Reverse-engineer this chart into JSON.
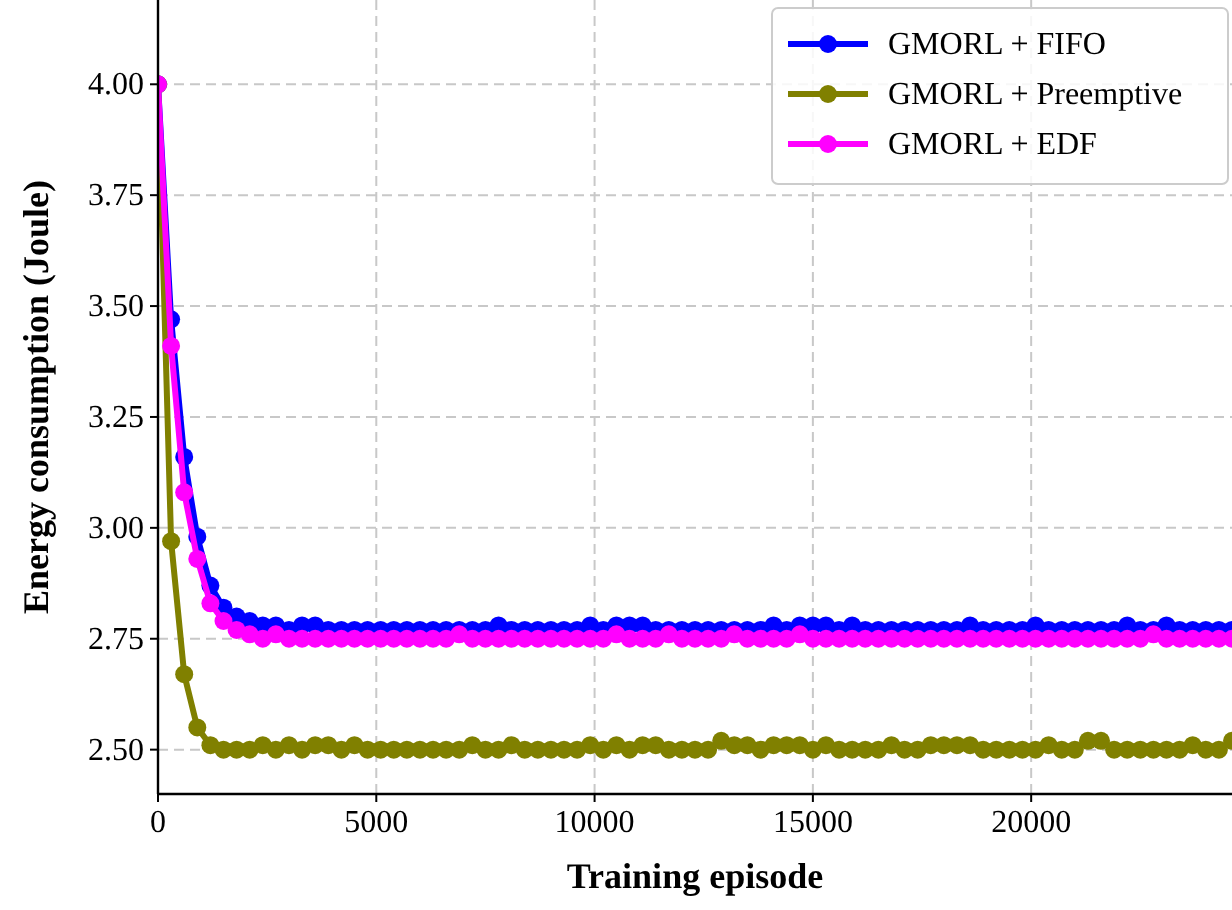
{
  "chart_data": {
    "type": "line",
    "xlabel": "Training episode",
    "ylabel": "Energy consumption (Joule)",
    "x": [
      0,
      300,
      600,
      900,
      1200,
      1500,
      1800,
      2100,
      2400,
      2700,
      3000,
      3300,
      3600,
      3900,
      4200,
      4500,
      4800,
      5100,
      5400,
      5700,
      6000,
      6300,
      6600,
      6900,
      7200,
      7500,
      7800,
      8100,
      8400,
      8700,
      9000,
      9300,
      9600,
      9900,
      10200,
      10500,
      10800,
      11100,
      11400,
      11700,
      12000,
      12300,
      12600,
      12900,
      13200,
      13500,
      13800,
      14100,
      14400,
      14700,
      15000,
      15300,
      15600,
      15900,
      16200,
      16500,
      16800,
      17100,
      17400,
      17700,
      18000,
      18300,
      18600,
      18900,
      19200,
      19500,
      19800,
      20100,
      20400,
      20700,
      21000,
      21300,
      21600,
      21900,
      22200,
      22500,
      22800,
      23100,
      23400,
      23700,
      24000,
      24300,
      24600
    ],
    "series": [
      {
        "name": "GMORL + FIFO",
        "color": "#0000ff",
        "values": [
          4.0,
          3.47,
          3.16,
          2.98,
          2.87,
          2.82,
          2.8,
          2.79,
          2.78,
          2.78,
          2.77,
          2.78,
          2.78,
          2.77,
          2.77,
          2.77,
          2.77,
          2.77,
          2.77,
          2.77,
          2.77,
          2.77,
          2.77,
          2.77,
          2.77,
          2.77,
          2.78,
          2.77,
          2.77,
          2.77,
          2.77,
          2.77,
          2.77,
          2.78,
          2.77,
          2.78,
          2.78,
          2.78,
          2.77,
          2.77,
          2.77,
          2.77,
          2.77,
          2.77,
          2.77,
          2.77,
          2.77,
          2.78,
          2.77,
          2.78,
          2.78,
          2.78,
          2.77,
          2.78,
          2.77,
          2.77,
          2.77,
          2.77,
          2.77,
          2.77,
          2.77,
          2.77,
          2.78,
          2.77,
          2.77,
          2.77,
          2.77,
          2.78,
          2.77,
          2.77,
          2.77,
          2.77,
          2.77,
          2.77,
          2.78,
          2.77,
          2.77,
          2.78,
          2.77,
          2.77,
          2.77,
          2.77,
          2.77
        ]
      },
      {
        "name": "GMORL + Preemptive",
        "color": "#808000",
        "values": [
          4.0,
          2.97,
          2.67,
          2.55,
          2.51,
          2.5,
          2.5,
          2.5,
          2.51,
          2.5,
          2.51,
          2.5,
          2.51,
          2.51,
          2.5,
          2.51,
          2.5,
          2.5,
          2.5,
          2.5,
          2.5,
          2.5,
          2.5,
          2.5,
          2.51,
          2.5,
          2.5,
          2.51,
          2.5,
          2.5,
          2.5,
          2.5,
          2.5,
          2.51,
          2.5,
          2.51,
          2.5,
          2.51,
          2.51,
          2.5,
          2.5,
          2.5,
          2.5,
          2.52,
          2.51,
          2.51,
          2.5,
          2.51,
          2.51,
          2.51,
          2.5,
          2.51,
          2.5,
          2.5,
          2.5,
          2.5,
          2.51,
          2.5,
          2.5,
          2.51,
          2.51,
          2.51,
          2.51,
          2.5,
          2.5,
          2.5,
          2.5,
          2.5,
          2.51,
          2.5,
          2.5,
          2.52,
          2.52,
          2.5,
          2.5,
          2.5,
          2.5,
          2.5,
          2.5,
          2.51,
          2.5,
          2.5,
          2.52
        ]
      },
      {
        "name": "GMORL + EDF",
        "color": "#ff00ff",
        "values": [
          4.0,
          3.41,
          3.08,
          2.93,
          2.83,
          2.79,
          2.77,
          2.76,
          2.75,
          2.76,
          2.75,
          2.75,
          2.75,
          2.75,
          2.75,
          2.75,
          2.75,
          2.75,
          2.75,
          2.75,
          2.75,
          2.75,
          2.75,
          2.76,
          2.75,
          2.75,
          2.75,
          2.75,
          2.75,
          2.75,
          2.75,
          2.75,
          2.75,
          2.75,
          2.75,
          2.76,
          2.75,
          2.75,
          2.75,
          2.76,
          2.75,
          2.75,
          2.75,
          2.75,
          2.76,
          2.75,
          2.75,
          2.75,
          2.75,
          2.76,
          2.75,
          2.75,
          2.75,
          2.75,
          2.75,
          2.75,
          2.75,
          2.75,
          2.75,
          2.75,
          2.75,
          2.75,
          2.75,
          2.75,
          2.75,
          2.75,
          2.75,
          2.75,
          2.75,
          2.75,
          2.75,
          2.75,
          2.75,
          2.75,
          2.75,
          2.75,
          2.76,
          2.75,
          2.75,
          2.75,
          2.75,
          2.75,
          2.75
        ]
      }
    ],
    "xlim": [
      0,
      24600
    ],
    "xticks": [
      0,
      5000,
      10000,
      15000,
      20000
    ],
    "ylim": [
      2.4,
      4.19
    ],
    "yticks": [
      {
        "value": 2.5,
        "label": "2.50"
      },
      {
        "value": 2.75,
        "label": "2.75"
      },
      {
        "value": 3,
        "label": "3.00"
      },
      {
        "value": 3.25,
        "label": "3.25"
      },
      {
        "value": 3.5,
        "label": "3.50"
      },
      {
        "value": 3.75,
        "label": "3.75"
      },
      {
        "value": 4,
        "label": "4.00"
      }
    ],
    "grid": true,
    "legend": "top right",
    "marker": "circle",
    "line_style": "solid"
  }
}
